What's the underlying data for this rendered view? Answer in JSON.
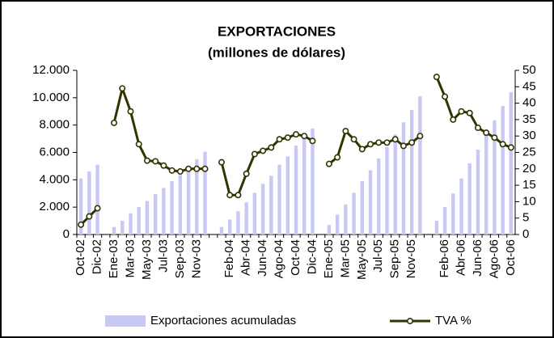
{
  "chart_data": {
    "type": "bar",
    "title": "EXPORTACIONES",
    "subtitle": "(millones de dólares)",
    "categories": [
      "Oct-02",
      null,
      "Dic-02",
      null,
      "Ene-03",
      null,
      "Mar-03",
      null,
      "May-03",
      null,
      "Jul-03",
      null,
      "Sep-03",
      null,
      "Nov-03",
      null,
      null,
      null,
      "Feb-04",
      null,
      "Abr-04",
      null,
      "Jun-04",
      null,
      "Ago-04",
      null,
      "Oct-04",
      null,
      "Dic-04",
      null,
      "Ene-05",
      null,
      "Mar-05",
      null,
      "May-05",
      null,
      "Jul-05",
      null,
      "Sep-05",
      null,
      "Nov-05",
      null,
      null,
      null,
      "Feb-06",
      null,
      "Abr-06",
      null,
      "Jun-06",
      null,
      "Ago-06",
      null,
      "Oct-06"
    ],
    "series": [
      {
        "name": "Exportaciones acumuladas",
        "type": "bar",
        "color": "#c8c8f4",
        "values": [
          4100,
          4600,
          5100,
          null,
          550,
          1000,
          1550,
          2000,
          2450,
          2950,
          3400,
          3900,
          4350,
          4950,
          5500,
          6050,
          null,
          550,
          1100,
          1700,
          2350,
          3050,
          3700,
          4300,
          5100,
          5700,
          6500,
          7100,
          7750,
          null,
          700,
          1450,
          2200,
          3050,
          3900,
          4700,
          5550,
          6400,
          7300,
          8200,
          9100,
          10100,
          null,
          1000,
          2000,
          3000,
          4100,
          5200,
          6200,
          7300,
          8350,
          9400,
          10400
        ]
      },
      {
        "name": "TVA %",
        "type": "line",
        "axis": "y2",
        "color": "#333300",
        "values": [
          3,
          5.5,
          8,
          null,
          34,
          44.5,
          37.5,
          27.5,
          22.5,
          22.3,
          21,
          19.5,
          19.2,
          20,
          20,
          20,
          null,
          22,
          12,
          12,
          18.5,
          24.5,
          25.5,
          26.5,
          29,
          29.5,
          30.5,
          30,
          28.5,
          null,
          21.5,
          23.5,
          31.5,
          29,
          26,
          27.5,
          28,
          28,
          29,
          27,
          28,
          30,
          null,
          48,
          42,
          35,
          37.5,
          37,
          32.5,
          31,
          29.5,
          27.5,
          26.5
        ]
      }
    ],
    "ylim": [
      0,
      12000
    ],
    "yticks": [
      0,
      {
        "value": 2000,
        "label": "2.000"
      },
      {
        "value": 4000,
        "label": "4.000"
      },
      {
        "value": 6000,
        "label": "6.000"
      },
      {
        "value": 8000,
        "label": "8.000"
      },
      {
        "value": 10000,
        "label": "10.000"
      },
      {
        "value": 12000,
        "label": "12.000"
      }
    ],
    "y2lim": [
      0,
      50
    ],
    "y2ticks": [
      0,
      5,
      10,
      15,
      20,
      25,
      30,
      35,
      40,
      45,
      50
    ],
    "grid": false,
    "legend": "bottom"
  }
}
